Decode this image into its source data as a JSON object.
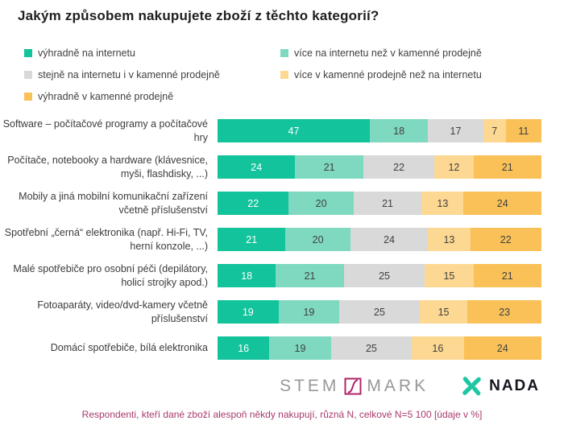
{
  "title": "Jakým způsobem nakupujete zboží z těchto kategorií?",
  "legend": {
    "items": [
      {
        "label": "výhradně na internetu",
        "color": "#13c39c"
      },
      {
        "label": "více na internetu než v kamenné prodejně",
        "color": "#7fd8c0"
      },
      {
        "label": "stejně na internetu i v kamenné prodejně",
        "color": "#d9d9d9"
      },
      {
        "label": "více v kamenné prodejně než na internetu",
        "color": "#fdd892"
      },
      {
        "label": "výhradně v kamenné prodejně",
        "color": "#f9c158"
      }
    ]
  },
  "chart_data": {
    "type": "bar",
    "orientation": "horizontal",
    "stacked": true,
    "unit": "%",
    "xlim": [
      0,
      100
    ],
    "grid": false,
    "legend_position": "top",
    "title": "Jakým způsobem nakupujete zboží z těchto kategorií?",
    "categories": [
      "Software – počítačové programy a počítačové hry",
      "Počítače, notebooky a hardware (klávesnice, myši, flashdisky, ...)",
      "Mobily a jiná mobilní komunikační zařízení včetně příslušenství",
      "Spotřební „černá“ elektronika (např. Hi-Fi, TV, herní konzole, ...)",
      "Malé spotřebiče pro osobní péči (depilátory, holicí strojky apod.)",
      "Fotoaparáty, video/dvd-kamery včetně příslušenství",
      "Domácí spotřebiče, bílá elektronika"
    ],
    "series": [
      {
        "name": "výhradně na internetu",
        "color": "#13c39c",
        "label_color": "#ffffff",
        "values": [
          47,
          24,
          22,
          21,
          18,
          19,
          16
        ]
      },
      {
        "name": "více na internetu než v kamenné prodejně",
        "color": "#7fd8c0",
        "label_color": "#404040",
        "values": [
          18,
          21,
          20,
          20,
          21,
          19,
          19
        ]
      },
      {
        "name": "stejně na internetu i v kamenné prodejně",
        "color": "#d9d9d9",
        "label_color": "#404040",
        "values": [
          17,
          22,
          21,
          24,
          25,
          25,
          25
        ]
      },
      {
        "name": "více v kamenné prodejně než na internetu",
        "color": "#fdd892",
        "label_color": "#404040",
        "values": [
          7,
          12,
          13,
          13,
          15,
          15,
          16
        ]
      },
      {
        "name": "výhradně v kamenné prodejně",
        "color": "#f9c158",
        "label_color": "#404040",
        "values": [
          11,
          21,
          24,
          22,
          21,
          23,
          24
        ]
      }
    ]
  },
  "logos": {
    "stemmark": {
      "text_left": "STEM",
      "text_right": "MARK",
      "accent_color": "#b0246a",
      "text_color": "#98989a"
    },
    "nada": {
      "text": "NADA",
      "icon_color": "#1cc7a2",
      "text_color": "#15151f"
    }
  },
  "footer": {
    "note": "Respondenti, kteří dané zboží alespoň někdy nakupují, různá N, celkové N=5 100 [údaje v %]",
    "color": "#a8396b"
  }
}
